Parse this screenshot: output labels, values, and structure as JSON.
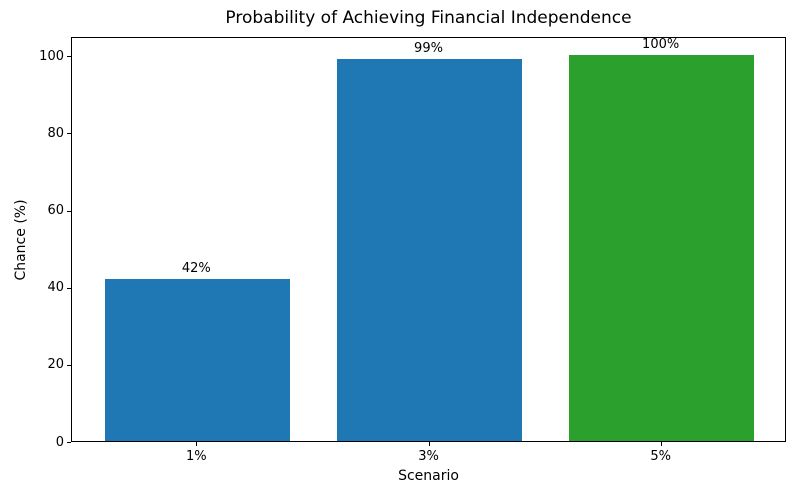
{
  "chart_data": {
    "type": "bar",
    "title": "Probability of Achieving Financial Independence",
    "xlabel": "Scenario",
    "ylabel": "Chance (%)",
    "categories": [
      "1%",
      "3%",
      "5%"
    ],
    "values": [
      42,
      99,
      100
    ],
    "bar_labels": [
      "42%",
      "99%",
      "100%"
    ],
    "bar_colors": [
      "#1f77b4",
      "#1f77b4",
      "#2ca02c"
    ],
    "yticks": [
      0,
      20,
      40,
      60,
      80,
      100
    ],
    "ylim": [
      0,
      105
    ],
    "grid": false,
    "legend": "none",
    "background_color": "#ffffff",
    "text_color": "#000000",
    "spine_color": "#000000"
  }
}
